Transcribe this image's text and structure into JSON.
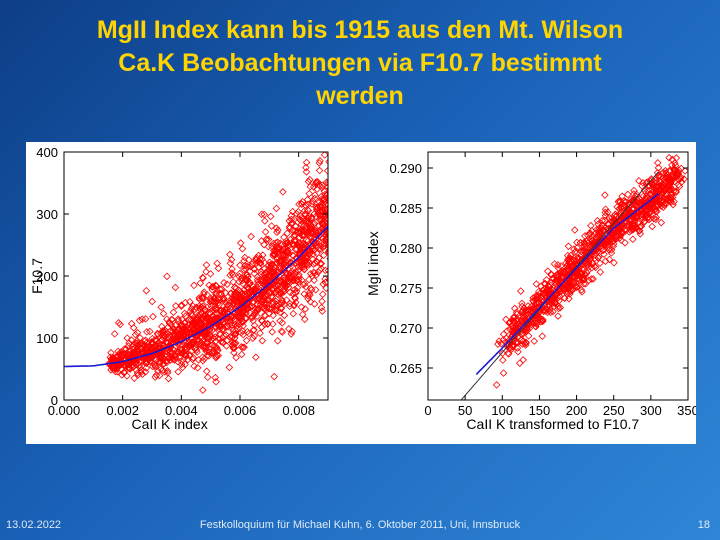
{
  "slide": {
    "title_lines": [
      "MgII Index kann bis 1915 aus den Mt. Wilson",
      "Ca.K Beobachtungen via F10.7 bestimmt",
      "werden"
    ],
    "footer_date": "13.02.2022",
    "footer_center": "Festkolloquium für Michael Kuhn, 6. Oktober 2011, Uni, Innsbruck",
    "page_number": "18"
  },
  "colors": {
    "title": "#ffd400",
    "points": "#ff0000",
    "fit": "#1a1ad6",
    "background_dark": "#0d3e86",
    "background_light": "#2f86d6"
  },
  "chart_data": [
    {
      "type": "scatter",
      "title": "",
      "xlabel": "CaII K index",
      "ylabel": "F10.7",
      "xlim": [
        0.0,
        0.009
      ],
      "ylim": [
        0,
        400
      ],
      "xticks": [
        "0.000",
        "0.002",
        "0.004",
        "0.006",
        "0.008"
      ],
      "yticks": [
        "0",
        "100",
        "200",
        "300",
        "400"
      ],
      "cloud": {
        "x_range": [
          0.0015,
          0.0092
        ],
        "point_count": 1800,
        "trend": "quadratic",
        "description_values": [
          {
            "x": 0.002,
            "y": 62
          },
          {
            "x": 0.004,
            "y": 100
          },
          {
            "x": 0.006,
            "y": 185
          },
          {
            "x": 0.008,
            "y": 250
          }
        ]
      },
      "fit": {
        "name": "",
        "x": [
          0.0,
          0.001,
          0.002,
          0.003,
          0.004,
          0.005,
          0.006,
          0.007,
          0.008,
          0.009
        ],
        "y": [
          54,
          55,
          62,
          75,
          94,
          119,
          150,
          187,
          230,
          280
        ]
      },
      "grid": false
    },
    {
      "type": "scatter",
      "title": "",
      "xlabel": "CaII K transformed to F10.7",
      "ylabel": "MgII index",
      "xlim": [
        0,
        350
      ],
      "ylim": [
        0.261,
        0.292
      ],
      "xticks": [
        "0",
        "50",
        "100",
        "150",
        "200",
        "250",
        "300",
        "350"
      ],
      "yticks": [
        "0.265",
        "0.270",
        "0.275",
        "0.280",
        "0.285",
        "0.290"
      ],
      "cloud": {
        "x_range": [
          65,
          335
        ],
        "point_count": 1100,
        "trend": "linear",
        "description_values": [
          {
            "x": 100,
            "y": 0.2675
          },
          {
            "x": 200,
            "y": 0.2775
          },
          {
            "x": 300,
            "y": 0.286
          }
        ]
      },
      "fit": {
        "name": "",
        "x": [
          65,
          100,
          150,
          200,
          250,
          300,
          310
        ],
        "y": [
          0.2642,
          0.2675,
          0.2725,
          0.2775,
          0.2825,
          0.286,
          0.2868
        ]
      },
      "identity_line": {
        "x": [
          40,
          310
        ],
        "y": [
          0.2605,
          0.2895
        ]
      },
      "grid": false
    }
  ]
}
